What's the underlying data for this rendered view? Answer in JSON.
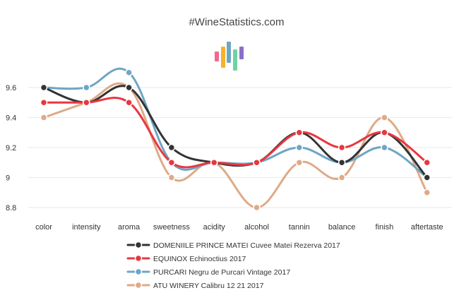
{
  "chart_data": {
    "type": "line",
    "title": "#WineStatistics.com",
    "categories": [
      "color",
      "intensity",
      "aroma",
      "sweetness",
      "acidity",
      "alcohol",
      "tannin",
      "balance",
      "finish",
      "aftertaste"
    ],
    "ylim": [
      8.8,
      9.6
    ],
    "yticks": [
      8.8,
      9,
      9.2,
      9.4,
      9.6
    ],
    "ytick_labels": [
      "8.8",
      "9",
      "9.2",
      "9.4",
      "9.6"
    ],
    "grid": true,
    "smooth": true,
    "legend_position": "bottom",
    "series": [
      {
        "name": "DOMENIILE PRINCE MATEI Cuvee Matei Rezerva 2017",
        "color": "#333333",
        "values": [
          9.6,
          9.5,
          9.6,
          9.2,
          9.1,
          9.1,
          9.3,
          9.1,
          9.3,
          9.0
        ]
      },
      {
        "name": "EQUINOX Echinoctius 2017",
        "color": "#e8373f",
        "values": [
          9.5,
          9.5,
          9.5,
          9.1,
          9.1,
          9.1,
          9.3,
          9.2,
          9.3,
          9.1
        ]
      },
      {
        "name": "PURCARI Negru de Purcari Vintage 2017",
        "color": "#6ea6c4",
        "values": [
          9.6,
          9.6,
          9.7,
          9.1,
          9.1,
          9.1,
          9.2,
          9.1,
          9.2,
          9.0
        ]
      },
      {
        "name": "ATU WINERY Calibru 12 21 2017",
        "color": "#deaa87",
        "values": [
          9.4,
          9.5,
          9.6,
          9.0,
          9.1,
          8.8,
          9.1,
          9.0,
          9.4,
          8.9
        ]
      }
    ],
    "logo_colors": [
      "#f06a8e",
      "#f7b22b",
      "#6ea6c4",
      "#6fd3a4",
      "#8a6fc9"
    ]
  }
}
